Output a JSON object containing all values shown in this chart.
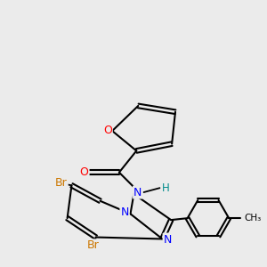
{
  "background_color": "#ebebeb",
  "bond_color": "#000000",
  "atom_colors": {
    "O": "#ff0000",
    "N": "#0000ff",
    "Br": "#cc7700",
    "H": "#008b8b",
    "C": "#000000"
  },
  "figsize": [
    3.0,
    3.0
  ],
  "dpi": 100
}
